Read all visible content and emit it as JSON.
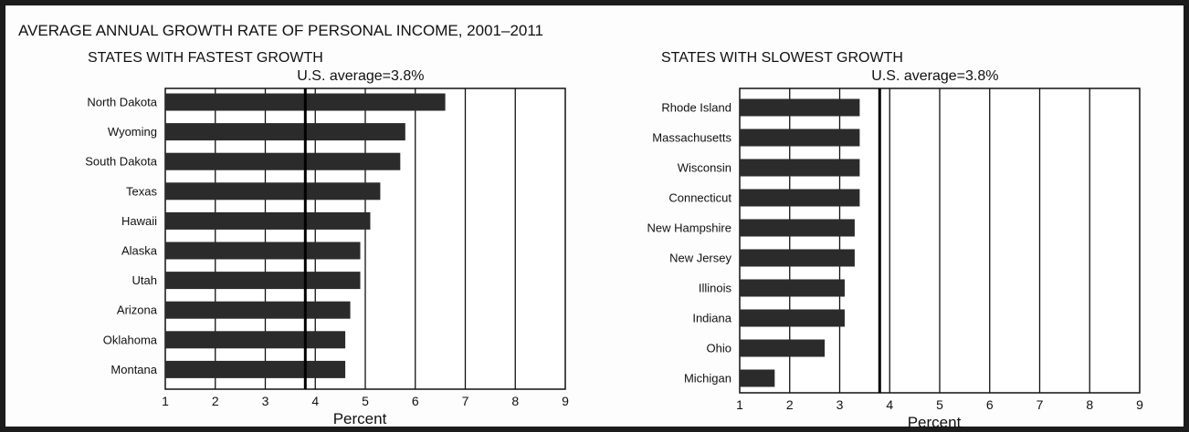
{
  "title": "AVERAGE ANNUAL GROWTH RATE OF PERSONAL INCOME, 2001–2011",
  "colors": {
    "bar": "#2b2b2b",
    "frame": "#1c1c1c",
    "grid": "#111111"
  },
  "chart_data": [
    {
      "type": "bar",
      "orientation": "horizontal",
      "title": "STATES WITH FASTEST GROWTH",
      "xlabel": "Percent",
      "xlim": [
        1,
        9
      ],
      "xticks": [
        1,
        2,
        3,
        4,
        5,
        6,
        7,
        8,
        9
      ],
      "grid": true,
      "reference_line": {
        "value": 3.8,
        "label": "U.S. average=3.8%"
      },
      "categories": [
        "North Dakota",
        "Wyoming",
        "South Dakota",
        "Texas",
        "Hawaii",
        "Alaska",
        "Utah",
        "Arizona",
        "Oklahoma",
        "Montana"
      ],
      "values": [
        6.6,
        5.8,
        5.7,
        5.3,
        5.1,
        4.9,
        4.9,
        4.7,
        4.6,
        4.6
      ]
    },
    {
      "type": "bar",
      "orientation": "horizontal",
      "title": "STATES WITH SLOWEST GROWTH",
      "xlabel": "Percent",
      "xlim": [
        1,
        9
      ],
      "xticks": [
        1,
        2,
        3,
        4,
        5,
        6,
        7,
        8,
        9
      ],
      "grid": true,
      "reference_line": {
        "value": 3.8,
        "label": "U.S. average=3.8%"
      },
      "categories": [
        "Rhode Island",
        "Massachusetts",
        "Wisconsin",
        "Connecticut",
        "New Hampshire",
        "New Jersey",
        "Illinois",
        "Indiana",
        "Ohio",
        "Michigan"
      ],
      "values": [
        3.4,
        3.4,
        3.4,
        3.4,
        3.3,
        3.3,
        3.1,
        3.1,
        2.7,
        1.7
      ]
    }
  ]
}
